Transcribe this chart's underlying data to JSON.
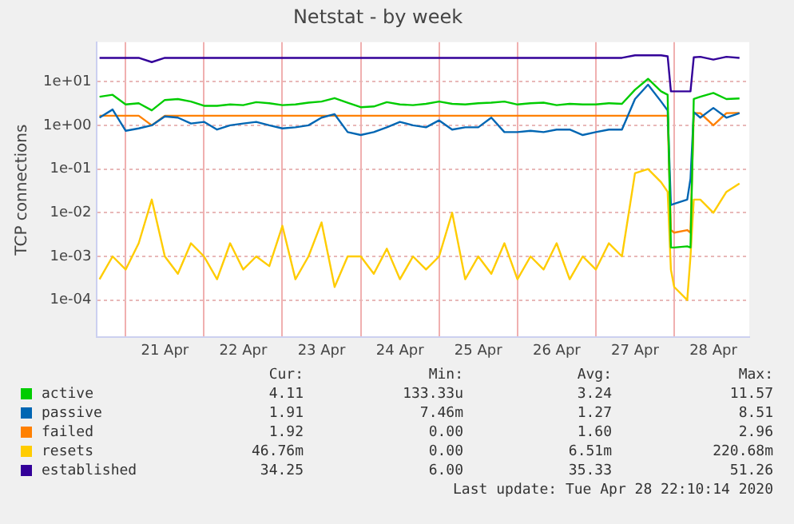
{
  "chart_data": {
    "type": "line",
    "title": "Netstat - by week",
    "ylabel": "TCP connections",
    "log": "y",
    "grid": true,
    "legend": "bottom",
    "marker": "none",
    "line_style": "solid",
    "x": [
      "2020-04-20T16:00",
      "2020-04-20T20:00",
      "2020-04-21T00:00",
      "2020-04-21T04:00",
      "2020-04-21T08:00",
      "2020-04-21T12:00",
      "2020-04-21T16:00",
      "2020-04-21T20:00",
      "2020-04-22T00:00",
      "2020-04-22T04:00",
      "2020-04-22T08:00",
      "2020-04-22T12:00",
      "2020-04-22T16:00",
      "2020-04-22T20:00",
      "2020-04-23T00:00",
      "2020-04-23T04:00",
      "2020-04-23T08:00",
      "2020-04-23T12:00",
      "2020-04-23T16:00",
      "2020-04-23T20:00",
      "2020-04-24T00:00",
      "2020-04-24T04:00",
      "2020-04-24T08:00",
      "2020-04-24T12:00",
      "2020-04-24T16:00",
      "2020-04-24T20:00",
      "2020-04-25T00:00",
      "2020-04-25T04:00",
      "2020-04-25T08:00",
      "2020-04-25T12:00",
      "2020-04-25T16:00",
      "2020-04-25T20:00",
      "2020-04-26T00:00",
      "2020-04-26T04:00",
      "2020-04-26T08:00",
      "2020-04-26T12:00",
      "2020-04-26T16:00",
      "2020-04-26T20:00",
      "2020-04-27T00:00",
      "2020-04-27T04:00",
      "2020-04-27T08:00",
      "2020-04-27T12:00",
      "2020-04-27T16:00",
      "2020-04-27T20:00",
      "2020-04-27T22:00",
      "2020-04-27T23:00",
      "2020-04-28T00:00",
      "2020-04-28T04:00",
      "2020-04-28T05:00",
      "2020-04-28T06:00",
      "2020-04-28T08:00",
      "2020-04-28T12:00",
      "2020-04-28T16:00",
      "2020-04-28T20:00"
    ],
    "xlim": [
      "2020-04-20T15:00",
      "2020-04-28T23:00"
    ],
    "xticks": [
      {
        "value": "2020-04-21T00:00",
        "label": null
      },
      {
        "value": "2020-04-21T12:00",
        "label": "21 Apr"
      },
      {
        "value": "2020-04-22T00:00",
        "label": null
      },
      {
        "value": "2020-04-22T12:00",
        "label": "22 Apr"
      },
      {
        "value": "2020-04-23T00:00",
        "label": null
      },
      {
        "value": "2020-04-23T12:00",
        "label": "23 Apr"
      },
      {
        "value": "2020-04-24T00:00",
        "label": null
      },
      {
        "value": "2020-04-24T12:00",
        "label": "24 Apr"
      },
      {
        "value": "2020-04-25T00:00",
        "label": null
      },
      {
        "value": "2020-04-25T12:00",
        "label": "25 Apr"
      },
      {
        "value": "2020-04-26T00:00",
        "label": null
      },
      {
        "value": "2020-04-26T12:00",
        "label": "26 Apr"
      },
      {
        "value": "2020-04-27T00:00",
        "label": null
      },
      {
        "value": "2020-04-27T12:00",
        "label": "27 Apr"
      },
      {
        "value": "2020-04-28T00:00",
        "label": null
      },
      {
        "value": "2020-04-28T12:00",
        "label": "28 Apr"
      }
    ],
    "ylim": [
      1.4e-05,
      80
    ],
    "yticks": [
      {
        "value": 0.0001,
        "label": "1e-04"
      },
      {
        "value": 0.001,
        "label": "1e-03"
      },
      {
        "value": 0.01,
        "label": "1e-02"
      },
      {
        "value": 0.1,
        "label": "1e-01"
      },
      {
        "value": 1,
        "label": "1e+00"
      },
      {
        "value": 10,
        "label": "1e+01"
      }
    ],
    "series": [
      {
        "name": "active",
        "color": "#00cc00",
        "values": [
          4.5,
          5,
          3,
          3.2,
          2.2,
          3.8,
          4,
          3.5,
          2.8,
          2.8,
          3,
          2.9,
          3.4,
          3.2,
          2.9,
          3,
          3.3,
          3.5,
          4.2,
          3.3,
          2.6,
          2.7,
          3.4,
          3,
          2.9,
          3.1,
          3.5,
          3.1,
          3,
          3.2,
          3.3,
          3.5,
          3,
          3.2,
          3.3,
          2.9,
          3.1,
          3,
          3,
          3.2,
          3.1,
          6.5,
          11.57,
          6,
          5,
          0.0016,
          0.0016,
          0.0017,
          0.0016,
          4,
          4.5,
          5.5,
          4,
          4.11
        ]
      },
      {
        "name": "passive",
        "color": "#0066b3",
        "values": [
          1.5,
          2.3,
          0.75,
          0.85,
          1,
          1.6,
          1.5,
          1.1,
          1.2,
          0.8,
          1,
          1.1,
          1.2,
          1,
          0.85,
          0.9,
          1,
          1.5,
          1.8,
          0.7,
          0.6,
          0.7,
          0.9,
          1.2,
          1,
          0.9,
          1.3,
          0.8,
          0.9,
          0.9,
          1.5,
          0.7,
          0.7,
          0.75,
          0.7,
          0.8,
          0.8,
          0.6,
          0.7,
          0.8,
          0.8,
          4,
          8.51,
          3.5,
          2.2,
          0.015,
          0.016,
          0.02,
          0.06,
          2,
          1.5,
          2.5,
          1.5,
          1.91
        ]
      },
      {
        "name": "failed",
        "color": "#ff8000",
        "values": [
          1.66,
          1.66,
          1.66,
          1.66,
          1,
          1.66,
          1.66,
          1.66,
          1.66,
          1.66,
          1.66,
          1.66,
          1.66,
          1.66,
          1.66,
          1.66,
          1.66,
          1.66,
          1.66,
          1.66,
          1.66,
          1.66,
          1.66,
          1.66,
          1.66,
          1.66,
          1.66,
          1.66,
          1.66,
          1.66,
          1.66,
          1.66,
          1.66,
          1.66,
          1.66,
          1.66,
          1.66,
          1.66,
          1.66,
          1.66,
          1.66,
          1.66,
          1.66,
          1.66,
          1.66,
          0.004,
          0.0035,
          0.004,
          0.0035,
          1.9,
          1.9,
          1,
          1.9,
          1.92
        ]
      },
      {
        "name": "resets",
        "color": "#ffcc00",
        "values": [
          0.0003,
          0.001,
          0.0005,
          0.002,
          0.02,
          0.001,
          0.0004,
          0.002,
          0.001,
          0.0003,
          0.002,
          0.0005,
          0.001,
          0.0006,
          0.005,
          0.0003,
          0.001,
          0.006,
          0.0002,
          0.001,
          0.001,
          0.0004,
          0.0015,
          0.0003,
          0.001,
          0.0005,
          0.001,
          0.01,
          0.0003,
          0.001,
          0.0004,
          0.002,
          0.0003,
          0.001,
          0.0005,
          0.002,
          0.0003,
          0.001,
          0.0005,
          0.002,
          0.001,
          0.08,
          0.1,
          0.05,
          0.03,
          0.0005,
          0.0002,
          0.0001,
          0.001,
          0.02,
          0.02,
          0.01,
          0.03,
          0.04676
        ]
      },
      {
        "name": "established",
        "color": "#330099",
        "values": [
          35,
          35,
          35,
          35,
          28,
          35,
          35,
          35,
          35,
          35,
          35,
          35,
          35,
          35,
          35,
          35,
          35,
          35,
          35,
          35,
          35,
          35,
          35,
          35,
          35,
          35,
          35,
          35,
          35,
          35,
          35,
          35,
          35,
          35,
          35,
          35,
          35,
          35,
          35,
          35,
          35,
          40,
          40,
          40,
          38,
          6,
          6,
          6,
          6,
          36,
          37,
          32,
          37,
          35
        ]
      }
    ],
    "annotations": [
      "Cur:",
      "Min:",
      "Avg:",
      "Max:",
      "4.11",
      "133.33u",
      "3.24",
      "11.57",
      "1.91",
      "7.46m",
      "1.27",
      "8.51",
      "1.92",
      "0.00",
      "1.60",
      "2.96",
      "46.76m",
      "0.00",
      "6.51m",
      "220.68m",
      "34.25",
      "6.00",
      "35.33",
      "51.26",
      "Last update: Tue Apr 28 22:10:14 2020"
    ]
  }
}
